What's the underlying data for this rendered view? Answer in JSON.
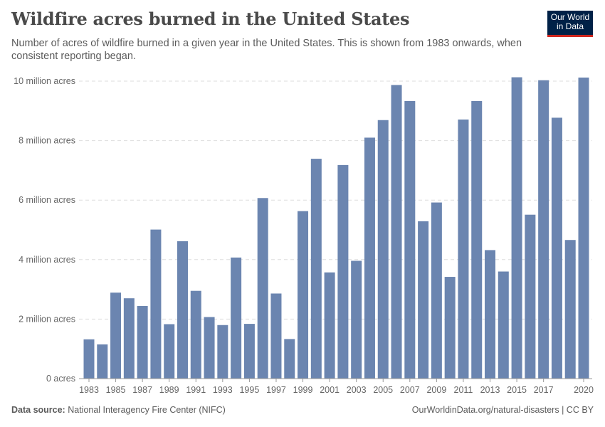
{
  "header": {
    "title": "Wildfire acres burned in the United States",
    "subtitle": "Number of acres of wildfire burned in a given year in the United States. This is shown from 1983 onwards, when consistent reporting began.",
    "logo": "Our World in Data"
  },
  "footer": {
    "source_label": "Data source:",
    "source": "National Interagency Fire Center (NIFC)",
    "url": "OurWorldinData.org/natural-disasters | CC BY"
  },
  "chart_data": {
    "type": "bar",
    "title": "Wildfire acres burned in the United States",
    "xlabel": "",
    "ylabel": "",
    "ylim": [
      0,
      10000000
    ],
    "grid": true,
    "bar_color": "#6b85b0",
    "yticks": [
      {
        "v": 0,
        "label": "0 acres"
      },
      {
        "v": 2000000,
        "label": "2 million acres"
      },
      {
        "v": 4000000,
        "label": "4 million acres"
      },
      {
        "v": 6000000,
        "label": "6 million acres"
      },
      {
        "v": 8000000,
        "label": "8 million acres"
      },
      {
        "v": 10000000,
        "label": "10 million acres"
      }
    ],
    "xtick_labels": [
      "1983",
      "1985",
      "1987",
      "1989",
      "1991",
      "1993",
      "1995",
      "1997",
      "1999",
      "2001",
      "2003",
      "2005",
      "2007",
      "2009",
      "2011",
      "2013",
      "2015",
      "2017",
      "2020"
    ],
    "categories": [
      1983,
      1984,
      1985,
      1986,
      1987,
      1988,
      1989,
      1990,
      1991,
      1992,
      1993,
      1994,
      1995,
      1996,
      1997,
      1998,
      1999,
      2000,
      2001,
      2002,
      2003,
      2004,
      2005,
      2006,
      2007,
      2008,
      2009,
      2010,
      2011,
      2012,
      2013,
      2014,
      2015,
      2016,
      2017,
      2018,
      2019,
      2020
    ],
    "values": [
      1320000,
      1150000,
      2890000,
      2700000,
      2440000,
      5010000,
      1830000,
      4620000,
      2950000,
      2070000,
      1800000,
      4070000,
      1840000,
      6070000,
      2860000,
      1330000,
      5630000,
      7390000,
      3570000,
      7180000,
      3960000,
      8100000,
      8690000,
      9870000,
      9330000,
      5290000,
      5920000,
      3420000,
      8710000,
      9330000,
      4320000,
      3600000,
      10130000,
      5510000,
      10030000,
      8770000,
      4660000,
      10120000
    ]
  }
}
